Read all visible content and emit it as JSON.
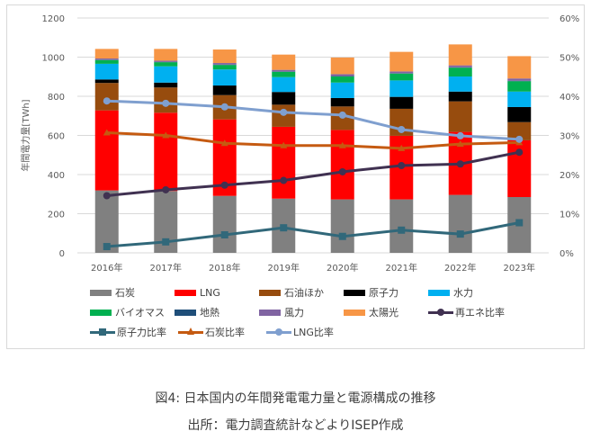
{
  "chart_data": {
    "type": "bar",
    "stacked": true,
    "title": "",
    "xlabel": "",
    "ylabel": "年間電力量[TWh]",
    "ylim": [
      0,
      1200
    ],
    "yticks": [
      "0",
      "200",
      "400",
      "600",
      "800",
      "1000",
      "1200"
    ],
    "y2lim": [
      0,
      60
    ],
    "y2ticks": [
      "0%",
      "10%",
      "20%",
      "30%",
      "40%",
      "50%",
      "60%"
    ],
    "grid": true,
    "legend_position": "bottom",
    "categories": [
      "2016年",
      "2017年",
      "2018年",
      "2019年",
      "2020年",
      "2021年",
      "2022年",
      "2023年"
    ],
    "series": [
      {
        "name": "石炭",
        "kind": "bar",
        "color": "#808080",
        "values": [
          319,
          316,
          291,
          277,
          273,
          273,
          296,
          285
        ]
      },
      {
        "name": "LNG",
        "kind": "bar",
        "color": "#ff0000",
        "values": [
          409,
          400,
          391,
          367,
          355,
          325,
          322,
          290
        ]
      },
      {
        "name": "石油ほか",
        "kind": "bar",
        "color": "#974c0e",
        "values": [
          140,
          129,
          124,
          113,
          120,
          138,
          156,
          93
        ]
      },
      {
        "name": "原子力",
        "kind": "bar",
        "color": "#000000",
        "values": [
          18,
          25,
          49,
          65,
          43,
          61,
          50,
          77
        ]
      },
      {
        "name": "水力",
        "kind": "bar",
        "color": "#00b0f0",
        "values": [
          80,
          83,
          82,
          76,
          79,
          84,
          77,
          79
        ]
      },
      {
        "name": "バイオマス",
        "kind": "bar",
        "color": "#00b050",
        "values": [
          19,
          21,
          23,
          27,
          31,
          35,
          45,
          53
        ]
      },
      {
        "name": "地熱",
        "kind": "bar",
        "color": "#1f4e79",
        "values": [
          2,
          2,
          2,
          2,
          2,
          2,
          2,
          2
        ]
      },
      {
        "name": "風力",
        "kind": "bar",
        "color": "#8064a2",
        "values": [
          6,
          6,
          8,
          8,
          10,
          9,
          10,
          12
        ]
      },
      {
        "name": "太陽光",
        "kind": "bar",
        "color": "#f79646",
        "values": [
          49,
          60,
          69,
          78,
          85,
          100,
          107,
          114
        ]
      },
      {
        "name": "再エネ比率",
        "kind": "line",
        "axis": "right",
        "marker": "circle",
        "color": "#403151",
        "values": [
          14.6,
          16.1,
          17.3,
          18.5,
          20.7,
          22.3,
          22.7,
          25.7
        ]
      },
      {
        "name": "原子力比率",
        "kind": "line",
        "axis": "right",
        "marker": "square",
        "color": "#31687a",
        "values": [
          1.6,
          2.8,
          4.6,
          6.4,
          4.2,
          5.8,
          4.8,
          7.7
        ]
      },
      {
        "name": "石炭比率",
        "kind": "line",
        "axis": "right",
        "marker": "triangle",
        "color": "#c55a11",
        "values": [
          30.7,
          30.0,
          28.0,
          27.4,
          27.4,
          26.7,
          27.8,
          28.2
        ]
      },
      {
        "name": "LNG比率",
        "kind": "line",
        "axis": "right",
        "marker": "circle",
        "color": "#7f9fcf",
        "values": [
          38.8,
          38.2,
          37.3,
          35.9,
          35.2,
          31.5,
          29.9,
          29.0
        ]
      }
    ]
  },
  "caption": {
    "line1": "図4: 日本国内の年間発電電力量と電源構成の推移",
    "line2": "出所：電力調査統計などよりISEP作成"
  }
}
